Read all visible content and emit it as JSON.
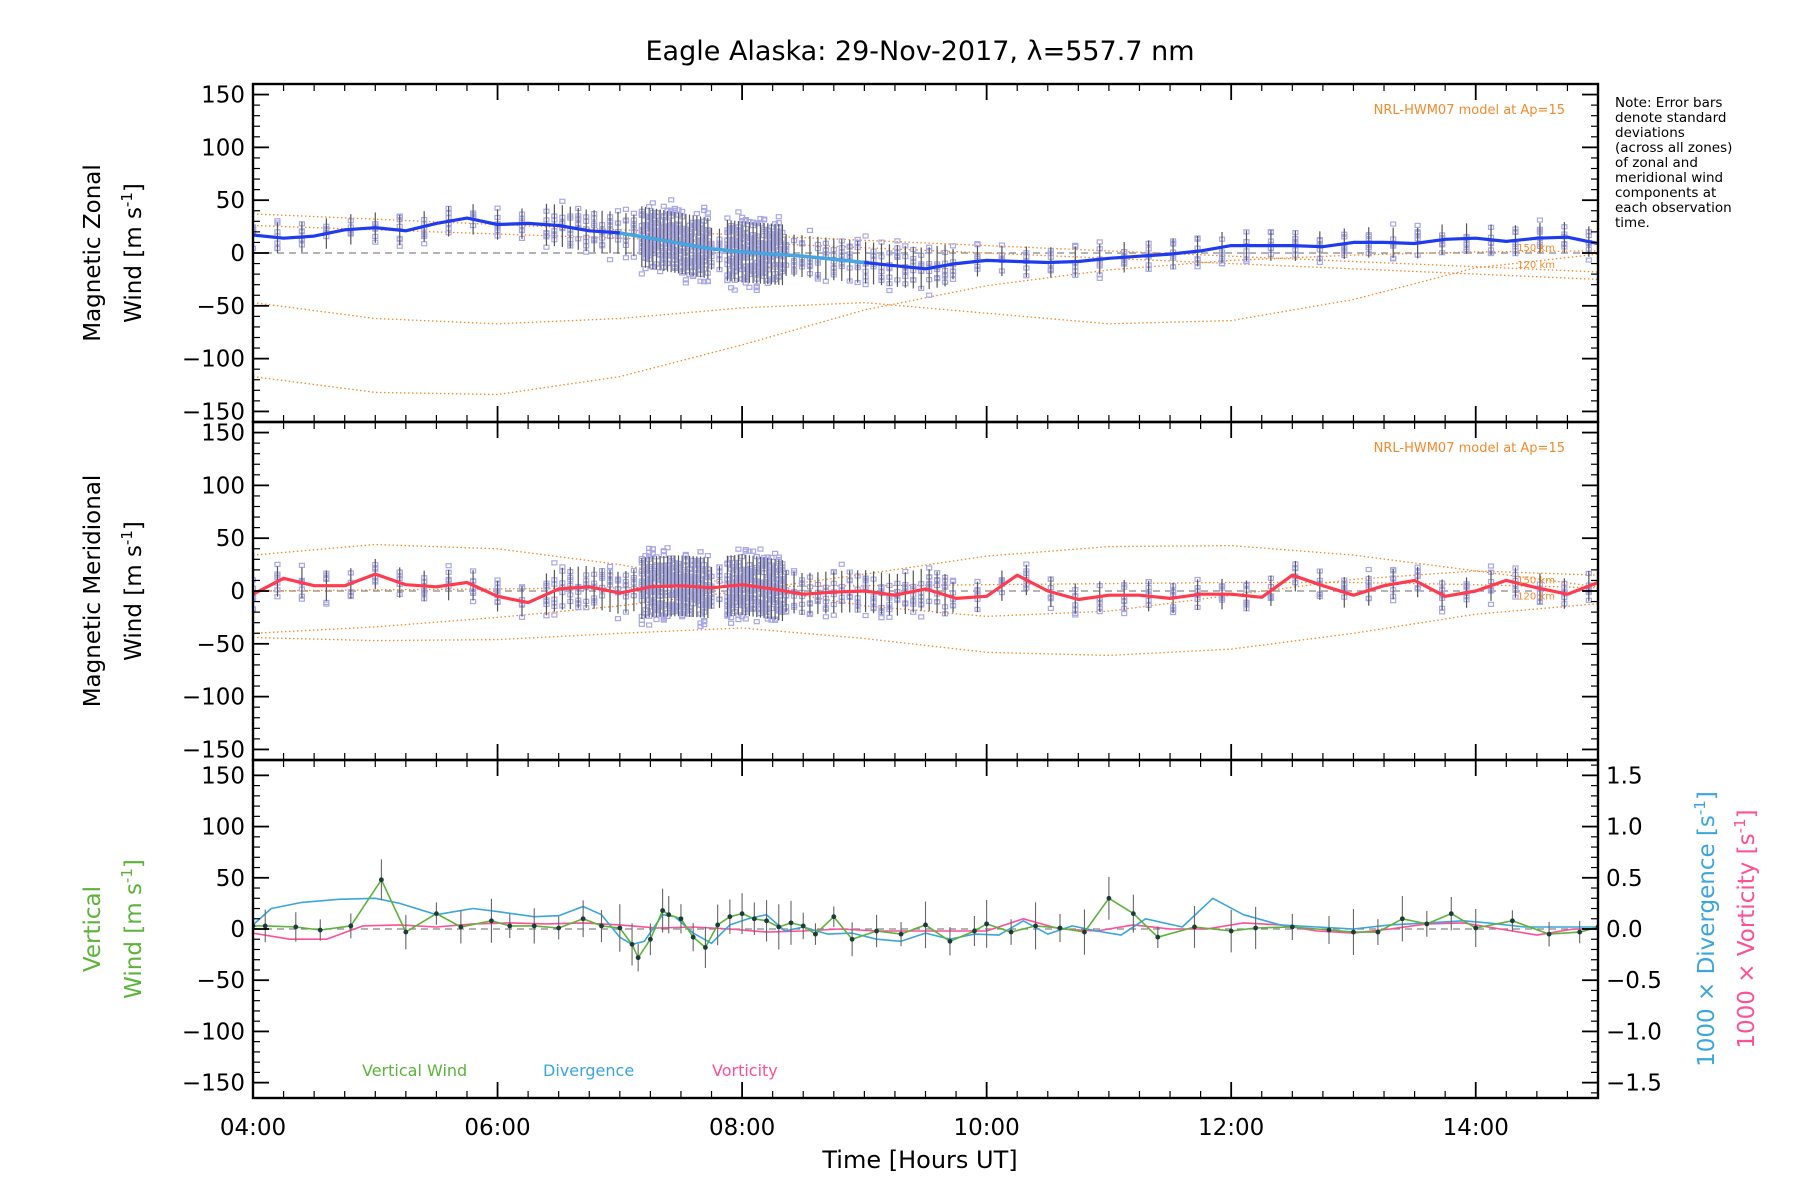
{
  "title": "Eagle Alaska: 29-Nov-2017, λ=557.7 nm",
  "note_lines": [
    "Note: Error bars",
    "denote standard",
    "deviations",
    "(across all zones)",
    "of zonal and",
    "meridional wind",
    "components at",
    "each observation",
    "time."
  ],
  "colors": {
    "zonal": "#1f3bf0",
    "zonal_light": "#45a6e0",
    "meridional": "#ff3b4f",
    "model": "#f28a2e",
    "zone_scatter": "#a8a8e8",
    "vertical": "#5db33a",
    "divergence": "#3aa6dd",
    "vorticity": "#ff4f96",
    "errorbar": "#555555"
  },
  "chart_data": [
    {
      "type": "line",
      "panel": "zonal",
      "ylabel": [
        "Magnetic Zonal",
        "Wind"
      ],
      "ylabel_units": "[m s",
      "ylabel_sup": "-1",
      "ylabel_close": "]",
      "ylim": [
        -160,
        160
      ],
      "yticks": [
        150,
        100,
        50,
        0,
        -50,
        -100,
        -150
      ],
      "model_label": "NRL-HWM07 model at Ap=15",
      "model_km_labels": [
        "150 km",
        "120 km"
      ],
      "series": [
        {
          "x": [
            4.0,
            4.25,
            4.5,
            4.75,
            5.0,
            5.25,
            5.5,
            5.75,
            6.0,
            6.25,
            6.5,
            6.75,
            7.0,
            7.25,
            7.5,
            7.75,
            8.0,
            8.25,
            8.5,
            8.75,
            9.0,
            9.25,
            9.5,
            9.75,
            10.0,
            10.25,
            10.5,
            10.75,
            11.0,
            11.25,
            11.5,
            11.75,
            12.0,
            12.25,
            12.5,
            12.75,
            13.0,
            13.25,
            13.5,
            13.75,
            14.0,
            14.25,
            14.5,
            14.75,
            15.0
          ],
          "y": [
            17,
            14,
            16,
            22,
            24,
            21,
            28,
            33,
            27,
            28,
            26,
            21,
            19,
            14,
            9,
            4,
            1,
            -1,
            -3,
            -6,
            -9,
            -12,
            -15,
            -10,
            -7,
            -8,
            -9,
            -8,
            -5,
            -3,
            -1,
            2,
            7,
            7,
            7,
            6,
            10,
            10,
            9,
            13,
            14,
            11,
            14,
            15,
            9
          ]
        }
      ],
      "model": [
        {
          "x": [
            4.0,
            5.0,
            6.0,
            7.0,
            8.0,
            9.0,
            10.0,
            11.0,
            12.0,
            13.0,
            14.0,
            15.0
          ],
          "y": [
            37,
            32,
            27,
            22,
            17,
            12,
            7,
            2,
            -3,
            -8,
            -13,
            -18
          ]
        },
        {
          "x": [
            4.0,
            5.0,
            6.0,
            7.0,
            8.0,
            9.0,
            10.0,
            11.0,
            12.0,
            13.0,
            14.0,
            15.0
          ],
          "y": [
            26,
            22,
            18,
            14,
            10,
            5,
            0,
            -5,
            -10,
            -15,
            -20,
            -25
          ]
        },
        {
          "x": [
            4.0,
            5.0,
            6.0,
            7.0,
            8.0,
            9.0,
            10.0,
            11.0,
            12.0,
            13.0,
            14.0,
            15.0
          ],
          "y": [
            -47,
            -62,
            -67,
            -62,
            -52,
            -47,
            -57,
            -67,
            -64,
            -44,
            -14,
            -1
          ]
        },
        {
          "x": [
            4.0,
            5.0,
            6.0,
            7.0,
            8.0,
            9.0,
            10.0,
            11.0,
            12.0,
            13.0,
            14.0,
            15.0
          ],
          "y": [
            -117,
            -132,
            -134,
            -117,
            -87,
            -54,
            -31,
            -16,
            -7,
            -2,
            1,
            2
          ]
        }
      ]
    },
    {
      "type": "line",
      "panel": "meridional",
      "ylabel": [
        "Magnetic Meridional",
        "Wind"
      ],
      "ylabel_units": "[m s",
      "ylabel_sup": "-1",
      "ylabel_close": "]",
      "ylim": [
        -160,
        160
      ],
      "yticks": [
        150,
        100,
        50,
        0,
        -50,
        -100,
        -150
      ],
      "model_label": "NRL-HWM07 model at Ap=15",
      "model_km_labels": [
        "150 km",
        "120 km"
      ],
      "series": [
        {
          "x": [
            4.0,
            4.25,
            4.5,
            4.75,
            5.0,
            5.25,
            5.5,
            5.75,
            6.0,
            6.25,
            6.5,
            6.75,
            7.0,
            7.25,
            7.5,
            7.75,
            8.0,
            8.25,
            8.5,
            8.75,
            9.0,
            9.25,
            9.5,
            9.75,
            10.0,
            10.25,
            10.5,
            10.75,
            11.0,
            11.25,
            11.5,
            11.75,
            12.0,
            12.25,
            12.5,
            12.75,
            13.0,
            13.25,
            13.5,
            13.75,
            14.0,
            14.25,
            14.5,
            14.75,
            15.0
          ],
          "y": [
            -3,
            12,
            5,
            5,
            16,
            6,
            4,
            8,
            -5,
            -11,
            2,
            4,
            -2,
            4,
            5,
            3,
            6,
            2,
            -3,
            -1,
            0,
            -4,
            2,
            -7,
            -5,
            15,
            0,
            -8,
            -4,
            -4,
            -7,
            -3,
            -3,
            -6,
            15,
            5,
            -4,
            5,
            10,
            -5,
            0,
            10,
            3,
            -3,
            8
          ]
        }
      ],
      "model": [
        {
          "x": [
            4.0,
            5.0,
            6.0,
            7.0,
            8.0,
            9.0,
            10.0,
            11.0,
            12.0,
            13.0,
            14.0,
            15.0
          ],
          "y": [
            34,
            44,
            40,
            25,
            5,
            -14,
            -24,
            -19,
            -4,
            11,
            19,
            15
          ]
        },
        {
          "x": [
            4.0,
            5.0,
            6.0,
            7.0,
            8.0,
            9.0,
            10.0,
            11.0,
            12.0,
            13.0,
            14.0,
            15.0
          ],
          "y": [
            -40,
            -34,
            -25,
            -14,
            0,
            16,
            33,
            42,
            43,
            34,
            19,
            4
          ]
        },
        {
          "x": [
            4.0,
            5.0,
            6.0,
            7.0,
            8.0,
            9.0,
            10.0,
            11.0,
            12.0,
            13.0,
            14.0,
            15.0
          ],
          "y": [
            -44,
            -47,
            -46,
            -40,
            -35,
            -45,
            -58,
            -61,
            -55,
            -40,
            -22,
            -12
          ]
        },
        {
          "x": [
            4.0,
            5.0,
            6.0,
            7.0,
            8.0,
            9.0,
            10.0,
            11.0,
            12.0,
            13.0,
            14.0,
            15.0
          ],
          "y": [
            0,
            1,
            2,
            3,
            4,
            5,
            6,
            7,
            8,
            8,
            6,
            3
          ]
        }
      ]
    },
    {
      "type": "line",
      "panel": "vertical",
      "ylabel_left": [
        "Vertical",
        "Wind"
      ],
      "ylabel_units": "[m s",
      "ylabel_sup": "-1",
      "ylabel_close": "]",
      "ylim": [
        -165,
        165
      ],
      "yticks": [
        150,
        100,
        50,
        0,
        -50,
        -100,
        -150
      ],
      "y2lim": [
        -1.65,
        1.65
      ],
      "y2ticks": [
        1.5,
        1.0,
        0.5,
        0.0,
        -0.5,
        -1.0,
        -1.5
      ],
      "y2labels": [
        "1.5",
        "1.0",
        "0.5",
        "0.0",
        "−0.5",
        "−1.0",
        "−1.5"
      ],
      "y2label_div": "1000 × Divergence",
      "y2label_vort": "1000 × Vorticity",
      "y2label_unit": "[s",
      "y2label_sup": "-1",
      "y2label_close": "]",
      "legend": [
        "Vertical Wind",
        "Divergence",
        "Vorticity"
      ],
      "series": [
        {
          "name": "Vertical Wind",
          "x": [
            4.0,
            4.1,
            4.35,
            4.55,
            4.8,
            5.05,
            5.25,
            5.5,
            5.7,
            5.95,
            6.1,
            6.3,
            6.5,
            6.7,
            6.85,
            7.0,
            7.1,
            7.15,
            7.25,
            7.35,
            7.4,
            7.5,
            7.6,
            7.7,
            7.8,
            7.9,
            8.0,
            8.1,
            8.2,
            8.3,
            8.4,
            8.5,
            8.6,
            8.75,
            8.9,
            9.1,
            9.3,
            9.5,
            9.7,
            9.9,
            10.0,
            10.2,
            10.4,
            10.6,
            10.8,
            11.0,
            11.2,
            11.4,
            11.7,
            12.0,
            12.2,
            12.5,
            12.8,
            13.0,
            13.2,
            13.4,
            13.6,
            13.8,
            14.0,
            14.3,
            14.6,
            14.85,
            15.0
          ],
          "y": [
            3,
            3,
            2,
            -1,
            3,
            48,
            -3,
            15,
            2,
            8,
            3,
            3,
            1,
            10,
            3,
            1,
            -15,
            -28,
            -10,
            18,
            14,
            10,
            -8,
            -18,
            4,
            12,
            15,
            10,
            8,
            2,
            6,
            3,
            -5,
            12,
            -10,
            -2,
            -5,
            4,
            -12,
            -2,
            5,
            -3,
            3,
            1,
            -3,
            30,
            15,
            -8,
            2,
            -2,
            1,
            2,
            -1,
            -3,
            -3,
            10,
            5,
            15,
            1,
            8,
            -5,
            -3,
            2
          ]
        },
        {
          "name": "Divergence",
          "x": [
            4.0,
            4.15,
            4.4,
            4.7,
            5.0,
            5.2,
            5.5,
            5.8,
            6.0,
            6.3,
            6.5,
            6.7,
            6.85,
            7.0,
            7.1,
            7.2,
            7.35,
            7.45,
            7.6,
            7.75,
            7.9,
            8.05,
            8.2,
            8.35,
            8.5,
            8.7,
            8.9,
            9.1,
            9.3,
            9.5,
            9.7,
            9.9,
            10.1,
            10.3,
            10.5,
            10.7,
            10.9,
            11.1,
            11.3,
            11.6,
            11.85,
            12.1,
            12.4,
            12.7,
            13.0,
            13.3,
            13.6,
            13.9,
            14.1,
            14.4,
            14.7,
            15.0
          ],
          "y": [
            0.04,
            0.2,
            0.26,
            0.29,
            0.3,
            0.25,
            0.14,
            0.2,
            0.17,
            0.12,
            0.13,
            0.22,
            0.14,
            -0.08,
            -0.15,
            -0.12,
            0.14,
            0.12,
            -0.04,
            -0.14,
            0.04,
            0.1,
            0.14,
            -0.02,
            0.02,
            -0.05,
            -0.04,
            -0.1,
            -0.12,
            -0.04,
            -0.1,
            -0.05,
            -0.06,
            0.08,
            -0.05,
            0.03,
            -0.02,
            -0.06,
            0.1,
            0.02,
            0.3,
            0.14,
            0.04,
            0.02,
            0.0,
            0.04,
            0.06,
            0.08,
            0.06,
            0.02,
            0.02,
            0.02
          ]
        },
        {
          "name": "Vorticity",
          "x": [
            4.0,
            4.3,
            4.6,
            4.9,
            5.2,
            5.5,
            5.8,
            6.1,
            6.4,
            6.7,
            7.0,
            7.3,
            7.6,
            7.9,
            8.2,
            8.5,
            8.8,
            9.1,
            9.4,
            9.7,
            10.0,
            10.3,
            10.6,
            10.9,
            11.2,
            11.5,
            11.8,
            12.1,
            12.4,
            12.7,
            13.0,
            13.3,
            13.6,
            13.9,
            14.2,
            14.5,
            14.8,
            15.0
          ],
          "y": [
            -0.04,
            -0.1,
            -0.1,
            0.03,
            0.04,
            0.02,
            0.05,
            0.06,
            0.05,
            0.06,
            0.04,
            0.01,
            0.02,
            0.0,
            -0.03,
            -0.02,
            0.0,
            -0.02,
            -0.02,
            -0.02,
            -0.02,
            0.1,
            0.0,
            -0.02,
            0.04,
            0.0,
            0.0,
            0.06,
            0.04,
            -0.02,
            -0.04,
            0.0,
            0.05,
            0.06,
            0.0,
            -0.06,
            0.0,
            0.0
          ]
        }
      ]
    }
  ],
  "xaxis": {
    "label": "Time [Hours UT]",
    "xlim": [
      4.0,
      15.0
    ],
    "tick_values": [
      4,
      6,
      8,
      10,
      12,
      14
    ],
    "tick_labels": [
      "04:00",
      "06:00",
      "08:00",
      "10:00",
      "12:00",
      "14:00"
    ]
  }
}
